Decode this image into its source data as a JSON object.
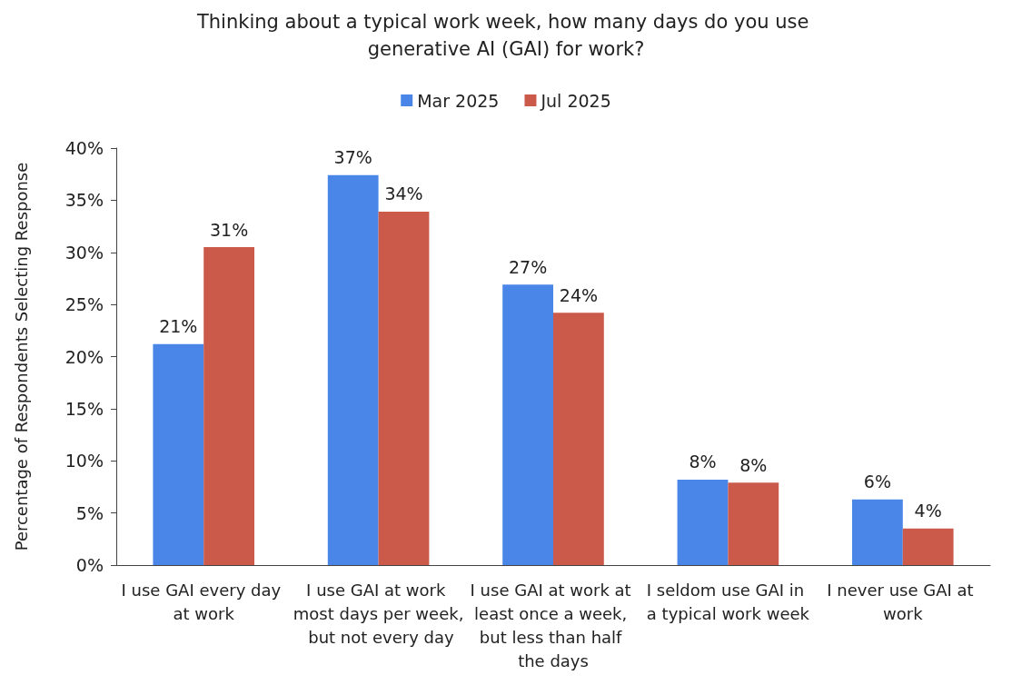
{
  "chart_data": {
    "type": "bar",
    "title": "Thinking about a typical work week, how many days do you use generative AI (GAI) for work?",
    "ylabel": "Percentage of Respondents Selecting Response",
    "categories": [
      "I use GAI every day at work",
      "I use GAI at work most days per week, but not every day",
      "I use GAI at work at least once a week, but less than half the days",
      "I seldom use GAI in a typical work week",
      "I never use GAI at work"
    ],
    "series": [
      {
        "name": "Mar 2025",
        "color": "#4a86e8",
        "values": [
          21.2,
          37.4,
          26.9,
          8.2,
          6.3
        ],
        "value_labels": [
          "21%",
          "37%",
          "27%",
          "8%",
          "6%"
        ]
      },
      {
        "name": "Jul 2025",
        "color": "#cc5a4b",
        "values": [
          30.5,
          33.9,
          24.2,
          7.9,
          3.5
        ],
        "value_labels": [
          "31%",
          "34%",
          "24%",
          "8%",
          "4%"
        ]
      }
    ],
    "ylim": [
      0,
      40
    ],
    "yticks": [
      {
        "value": 0,
        "label": "0%"
      },
      {
        "value": 5,
        "label": "5%"
      },
      {
        "value": 10,
        "label": "10%"
      },
      {
        "value": 15,
        "label": "15%"
      },
      {
        "value": 20,
        "label": "20%"
      },
      {
        "value": 25,
        "label": "25%"
      },
      {
        "value": 30,
        "label": "30%"
      },
      {
        "value": 35,
        "label": "35%"
      },
      {
        "value": 40,
        "label": "40%"
      }
    ],
    "grid": false,
    "legend": "top"
  }
}
